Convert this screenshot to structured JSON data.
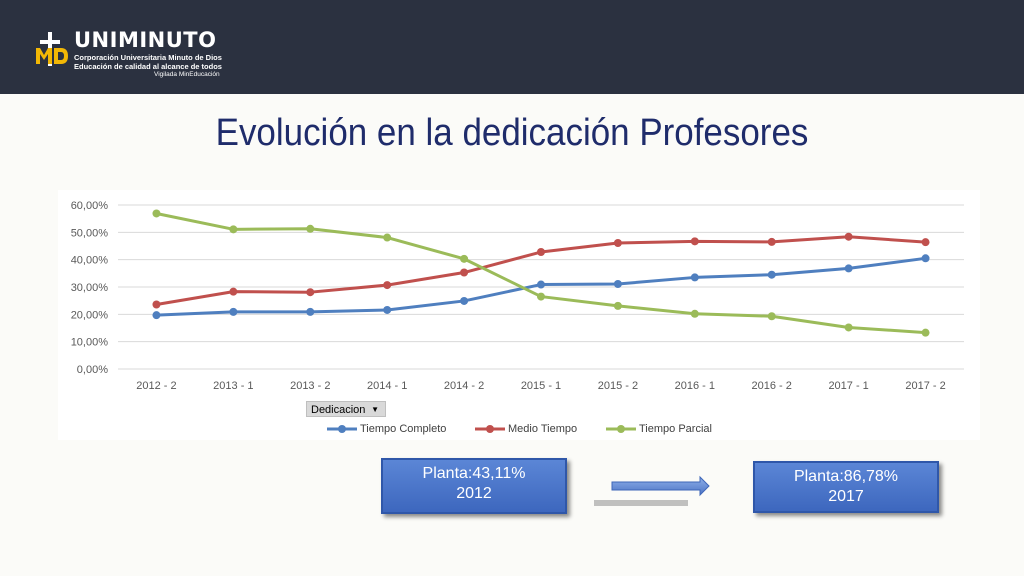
{
  "header": {
    "brand": "UNIMINUTO",
    "line1": "Corporación Universitaria Minuto de Dios",
    "line2": "Educación de calidad al alcance de todos",
    "line3": "Vigilada MinEducación",
    "colors": {
      "bar": "#2b3140",
      "mark": "#f2b705"
    }
  },
  "slide": {
    "title": "Evolución en la dedicación Profesores"
  },
  "filter": {
    "label": "Dedicacion"
  },
  "boxes": {
    "left": {
      "line1": "Planta:43,11%",
      "line2": "2012"
    },
    "right": {
      "line1": "Planta:86,78%",
      "line2": "2017"
    }
  },
  "chart_data": {
    "type": "line",
    "categories": [
      "2012 - 2",
      "2013 - 1",
      "2013 - 2",
      "2014 - 1",
      "2014 - 2",
      "2015 - 1",
      "2015 - 2",
      "2016 - 1",
      "2016 - 2",
      "2017 - 1",
      "2017 - 2"
    ],
    "y_ticks": [
      "0,00%",
      "10,00%",
      "20,00%",
      "30,00%",
      "40,00%",
      "50,00%",
      "60,00%"
    ],
    "ylim": [
      0,
      60
    ],
    "grid": true,
    "legend_position": "bottom",
    "series": [
      {
        "name": "Tiempo Completo",
        "color": "#4f7fbf",
        "values": [
          19.7,
          20.9,
          20.9,
          21.6,
          24.9,
          30.9,
          31.1,
          33.5,
          34.5,
          36.8,
          40.5
        ]
      },
      {
        "name": "Medio Tiempo",
        "color": "#c0504d",
        "values": [
          23.6,
          28.3,
          28.1,
          30.7,
          35.3,
          42.8,
          46.1,
          46.7,
          46.5,
          48.4,
          46.4
        ]
      },
      {
        "name": "Tiempo Parcial",
        "color": "#9bbb59",
        "values": [
          56.9,
          51.1,
          51.3,
          48.1,
          40.3,
          26.5,
          23.1,
          20.2,
          19.3,
          15.2,
          13.3
        ]
      }
    ]
  }
}
